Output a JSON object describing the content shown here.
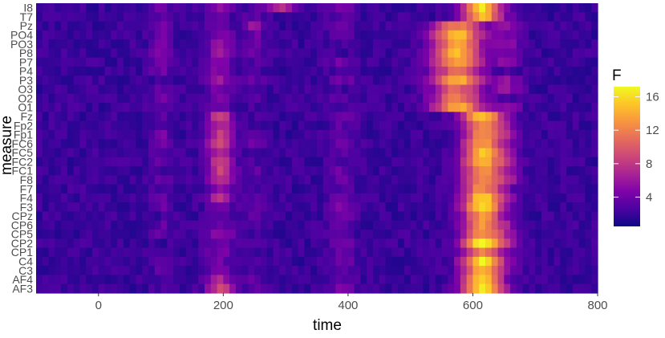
{
  "chart_data": {
    "type": "heatmap",
    "title": "",
    "xlabel": "time",
    "ylabel": "measure",
    "x_ticks": [
      0,
      200,
      400,
      600,
      800
    ],
    "x_range": [
      -100,
      800
    ],
    "x_step": 10,
    "y_labels": [
      "I8",
      "T7",
      "Pz",
      "PO4",
      "PO3",
      "P8",
      "P7",
      "P4",
      "P3",
      "O3",
      "O2",
      "O1",
      "Fz",
      "Fp2",
      "Fp1",
      "FC6",
      "FC5",
      "FC2",
      "FC1",
      "F8",
      "F7",
      "F4",
      "F3",
      "CPz",
      "CP6",
      "CP5",
      "CP2",
      "CP1",
      "C4",
      "C3",
      "AF4",
      "AF3"
    ],
    "legend": {
      "title": "F",
      "ticks": [
        4,
        8,
        12,
        16
      ],
      "range": [
        0.5,
        17.2
      ],
      "colormap": "plasma",
      "placement": "right"
    },
    "colors": {
      "low": "#0d0887",
      "mid": "#cc4778",
      "high": "#f0f921",
      "axis_text": "#4d4d4d",
      "title_text": "#000000"
    },
    "description_of_values": "F statistic per measure and time; high values (12-17) concentrated around time 560-640, moderate bands near 180-200 and 250"
  }
}
